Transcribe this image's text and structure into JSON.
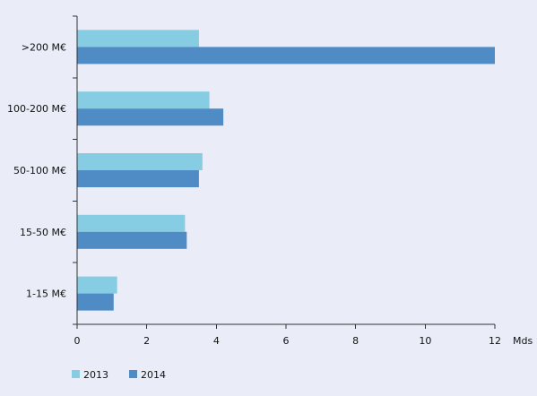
{
  "chart_data": {
    "type": "bar",
    "orientation": "horizontal",
    "categories": [
      ">200 M€",
      "100-200 M€",
      "50-100 M€",
      "15-50 M€",
      "1-15 M€"
    ],
    "series": [
      {
        "name": "2013",
        "color": "#86cce3",
        "values": [
          3.5,
          3.8,
          3.6,
          3.1,
          1.15
        ]
      },
      {
        "name": "2014",
        "color": "#4f8bc4",
        "values": [
          12.0,
          4.2,
          3.5,
          3.15,
          1.05
        ]
      }
    ],
    "x_unit": "Mds",
    "xlim": [
      0,
      12
    ],
    "x_ticks": [
      "0",
      "2",
      "4",
      "6",
      "8",
      "10",
      "12"
    ],
    "grid": false,
    "legend_position": "bottom-left"
  }
}
